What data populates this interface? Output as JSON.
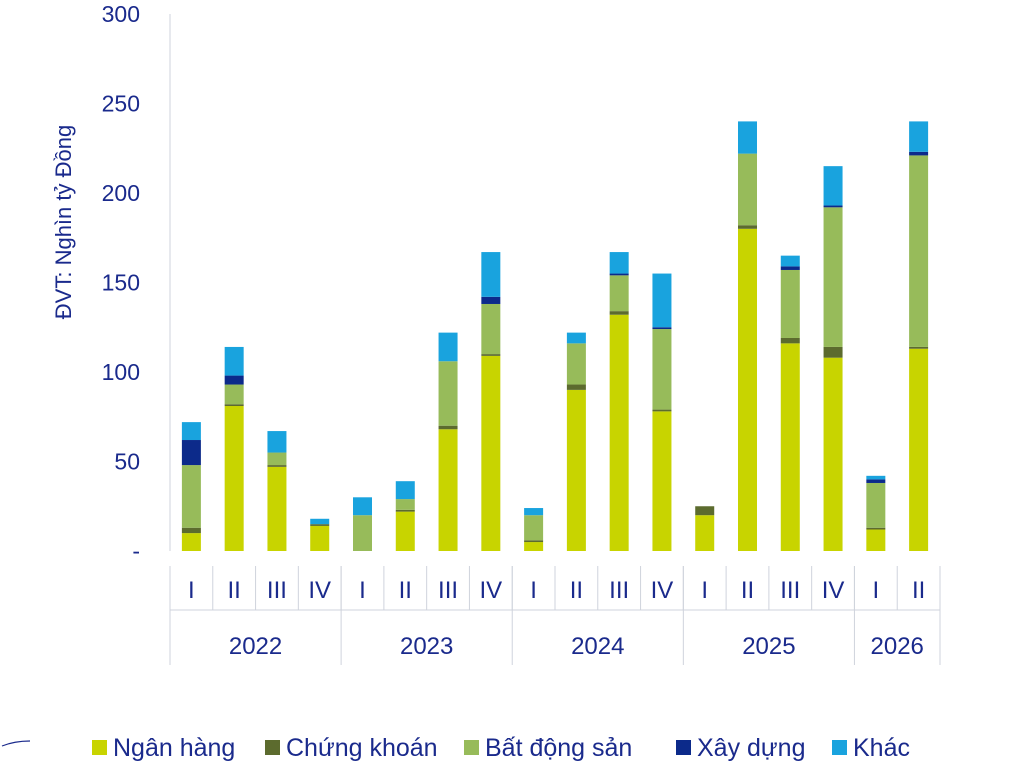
{
  "chart_data": {
    "type": "bar",
    "stacked": true,
    "ylabel": "ĐVT: Nghìn tỷ Đồng",
    "ylim": [
      0,
      300
    ],
    "yticks": [
      {
        "value": 300,
        "label": "300"
      },
      {
        "value": 250,
        "label": "250"
      },
      {
        "value": 200,
        "label": "200"
      },
      {
        "value": 150,
        "label": "150"
      },
      {
        "value": 100,
        "label": "100"
      },
      {
        "value": 50,
        "label": "50"
      },
      {
        "value": 0,
        "label": "-"
      }
    ],
    "categories": [
      "I",
      "II",
      "III",
      "IV",
      "I",
      "II",
      "III",
      "IV",
      "I",
      "II",
      "III",
      "IV",
      "I",
      "II",
      "III",
      "IV",
      "I",
      "II"
    ],
    "groups": [
      {
        "label": "2022",
        "count": 4
      },
      {
        "label": "2023",
        "count": 4
      },
      {
        "label": "2024",
        "count": 4
      },
      {
        "label": "2025",
        "count": 4
      },
      {
        "label": "2026",
        "count": 2
      }
    ],
    "legend_position": "bottom",
    "series": [
      {
        "name": "Ngân hàng",
        "color": "#c8d400",
        "values": [
          10,
          81,
          47,
          14,
          0,
          22,
          68,
          109,
          5,
          90,
          132,
          78,
          20,
          180,
          116,
          108,
          12,
          113
        ]
      },
      {
        "name": "Chứng khoán",
        "color": "#5c6b2e",
        "values": [
          3,
          1,
          1,
          1,
          0,
          1,
          2,
          1,
          1,
          3,
          2,
          1,
          5,
          2,
          3,
          6,
          1,
          1
        ]
      },
      {
        "name": "Bất động sản",
        "color": "#97bb5a",
        "values": [
          35,
          11,
          7,
          0,
          20,
          6,
          36,
          28,
          14,
          23,
          20,
          45,
          0,
          40,
          38,
          78,
          25,
          107
        ]
      },
      {
        "name": "Xây dựng",
        "color": "#0c2a8a",
        "values": [
          14,
          5,
          0,
          0,
          0,
          0,
          0,
          4,
          0,
          0,
          1,
          1,
          0,
          0,
          2,
          1,
          2,
          2
        ]
      },
      {
        "name": "Khác",
        "color": "#19a3de",
        "values": [
          10,
          16,
          12,
          3,
          10,
          10,
          16,
          25,
          4,
          6,
          12,
          30,
          0,
          18,
          6,
          22,
          2,
          17
        ]
      }
    ]
  }
}
